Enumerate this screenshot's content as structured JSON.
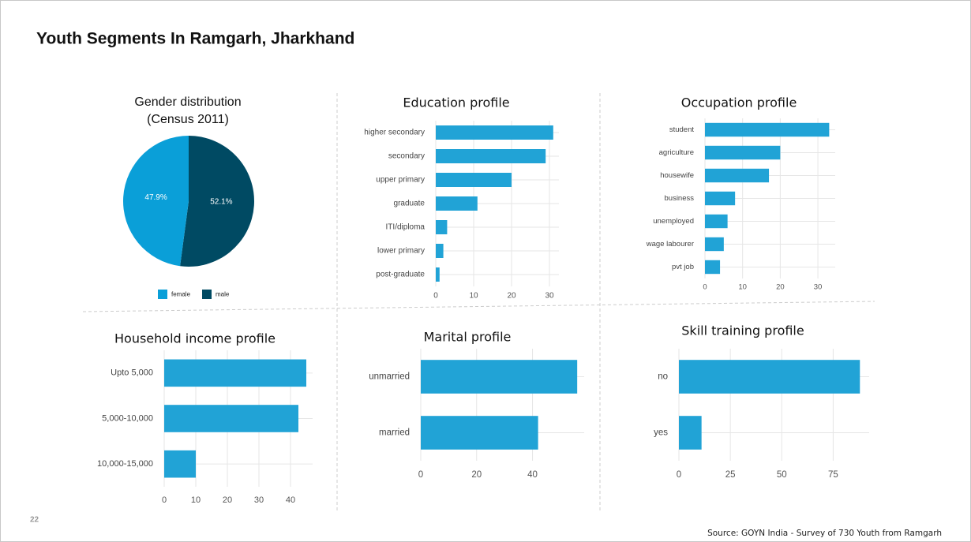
{
  "title": "Youth Segments In Ramgarh, Jharkhand",
  "page_number": 22,
  "source": "Source: GOYN India - Survey of 730 Youth from Ramgarh",
  "chart_data": [
    {
      "type": "pie",
      "title": "Gender distribution",
      "subtitle": "(Census 2011)",
      "categories": [
        "female",
        "male"
      ],
      "values": [
        47.9,
        52.1
      ],
      "value_labels": [
        "47.9%",
        "52.1%"
      ],
      "colors": [
        "#0a9fd8",
        "#004a63"
      ],
      "legend": "bottom"
    },
    {
      "type": "hbar",
      "title": "Education profile",
      "categories": [
        "higher secondary",
        "secondary",
        "upper primary",
        "graduate",
        "ITI/diploma",
        "lower primary",
        "post-graduate"
      ],
      "values": [
        31,
        29,
        20,
        11,
        3,
        2,
        1
      ],
      "color": "#21a3d6",
      "xlim": [
        0,
        32.5
      ],
      "xticks": [
        0,
        10,
        20,
        30
      ],
      "grid": true
    },
    {
      "type": "hbar",
      "title": "Occupation profile",
      "categories": [
        "student",
        "agriculture",
        "housewife",
        "business",
        "unemployed",
        "wage labourer",
        "pvt job"
      ],
      "values": [
        33,
        20,
        17,
        8,
        6,
        5,
        4
      ],
      "color": "#21a3d6",
      "xlim": [
        0,
        34.6
      ],
      "xticks": [
        0,
        10,
        20,
        30
      ],
      "grid": true
    },
    {
      "type": "hbar",
      "title": "Household income profile",
      "categories": [
        "Upto 5,000",
        "5,000-10,000",
        "10,000-15,000"
      ],
      "values": [
        45,
        42.5,
        10
      ],
      "color": "#21a3d6",
      "xlim": [
        0,
        47
      ],
      "xticks": [
        0,
        10,
        20,
        30,
        40
      ],
      "grid": true
    },
    {
      "type": "hbar",
      "title": "Marital profile",
      "categories": [
        "unmarried",
        "married"
      ],
      "values": [
        56,
        42
      ],
      "color": "#21a3d6",
      "xlim": [
        0,
        58.5
      ],
      "xticks": [
        0,
        20,
        40
      ],
      "grid": true
    },
    {
      "type": "hbar",
      "title": "Skill training profile",
      "categories": [
        "no",
        "yes"
      ],
      "values": [
        88,
        11
      ],
      "color": "#21a3d6",
      "xlim": [
        0,
        92.5
      ],
      "xticks": [
        0,
        25,
        50,
        75
      ],
      "grid": true
    }
  ]
}
